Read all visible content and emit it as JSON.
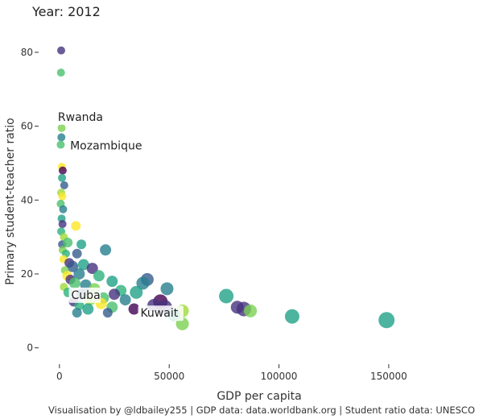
{
  "chart_data": {
    "type": "scatter",
    "title": "Year: 2012",
    "xlabel": "GDP per capita",
    "ylabel": "Primary student-teacher ratio",
    "caption": "Visualisation by @ldbailey255 | GDP data: data.worldbank.org | Student ratio data: UNESCO",
    "xlim": [
      -8000,
      190000
    ],
    "ylim": [
      -4,
      85
    ],
    "x_ticks": [
      0,
      50000,
      100000,
      150000
    ],
    "x_tick_labels": [
      "0",
      "50000",
      "100000",
      "150000"
    ],
    "y_ticks": [
      0,
      20,
      40,
      60,
      80
    ],
    "y_tick_labels": [
      "0",
      "20",
      "40",
      "60",
      "80"
    ],
    "grid": false,
    "annotations": [
      {
        "label": "Rwanda",
        "x": 1500,
        "y": 59.5
      },
      {
        "label": "Mozambique",
        "x": 1200,
        "y": 55
      },
      {
        "label": "Cuba",
        "x": 6500,
        "y": 15
      },
      {
        "label": "Kuwait",
        "x": 49000,
        "y": 11
      }
    ],
    "points": [
      {
        "x": 800,
        "y": 80.5,
        "size": 3,
        "color": "#46327e"
      },
      {
        "x": 700,
        "y": 74.5,
        "size": 3,
        "color": "#4ac16d"
      },
      {
        "x": 1000,
        "y": 59.5,
        "size": 3,
        "color": "#7ad151"
      },
      {
        "x": 900,
        "y": 57,
        "size": 3,
        "color": "#277f8e"
      },
      {
        "x": 600,
        "y": 55,
        "size": 3,
        "color": "#4ac16d"
      },
      {
        "x": 1100,
        "y": 49,
        "size": 3,
        "color": "#fde725"
      },
      {
        "x": 1500,
        "y": 48,
        "size": 3,
        "color": "#440154"
      },
      {
        "x": 1200,
        "y": 46,
        "size": 3,
        "color": "#1fa187"
      },
      {
        "x": 2200,
        "y": 44,
        "size": 3,
        "color": "#365c8d"
      },
      {
        "x": 800,
        "y": 42,
        "size": 3,
        "color": "#a0da39"
      },
      {
        "x": 1300,
        "y": 41,
        "size": 3,
        "color": "#fde725"
      },
      {
        "x": 600,
        "y": 39,
        "size": 3,
        "color": "#4ac16d"
      },
      {
        "x": 1700,
        "y": 37.5,
        "size": 3,
        "color": "#277f8e"
      },
      {
        "x": 1000,
        "y": 35,
        "size": 3,
        "color": "#1fa187"
      },
      {
        "x": 1400,
        "y": 33.5,
        "size": 3,
        "color": "#46327e"
      },
      {
        "x": 7500,
        "y": 33,
        "size": 4,
        "color": "#fde725"
      },
      {
        "x": 800,
        "y": 31.5,
        "size": 3,
        "color": "#2db27d"
      },
      {
        "x": 2000,
        "y": 30,
        "size": 3,
        "color": "#a0da39"
      },
      {
        "x": 1200,
        "y": 28,
        "size": 3,
        "color": "#365c8d"
      },
      {
        "x": 3800,
        "y": 28.5,
        "size": 4,
        "color": "#4ac16d"
      },
      {
        "x": 10000,
        "y": 28,
        "size": 4,
        "color": "#1fa187"
      },
      {
        "x": 1500,
        "y": 26.5,
        "size": 3,
        "color": "#7ad151"
      },
      {
        "x": 3000,
        "y": 25.5,
        "size": 3,
        "color": "#2db27d"
      },
      {
        "x": 8000,
        "y": 25.5,
        "size": 4,
        "color": "#365c8d"
      },
      {
        "x": 21000,
        "y": 26.5,
        "size": 5,
        "color": "#277f8e"
      },
      {
        "x": 1800,
        "y": 24,
        "size": 3,
        "color": "#fde725"
      },
      {
        "x": 4500,
        "y": 23,
        "size": 4,
        "color": "#46327e"
      },
      {
        "x": 6000,
        "y": 22,
        "size": 5,
        "color": "#365c8d"
      },
      {
        "x": 11000,
        "y": 22.5,
        "size": 5,
        "color": "#1fa187"
      },
      {
        "x": 2500,
        "y": 21,
        "size": 3,
        "color": "#7ad151"
      },
      {
        "x": 15000,
        "y": 21.5,
        "size": 5,
        "color": "#46327e"
      },
      {
        "x": 9000,
        "y": 20,
        "size": 5,
        "color": "#277f8e"
      },
      {
        "x": 3500,
        "y": 19.5,
        "size": 4,
        "color": "#fde725"
      },
      {
        "x": 18000,
        "y": 19.5,
        "size": 5,
        "color": "#2db27d"
      },
      {
        "x": 24000,
        "y": 18,
        "size": 5,
        "color": "#1fa187"
      },
      {
        "x": 5000,
        "y": 18.5,
        "size": 4,
        "color": "#46327e"
      },
      {
        "x": 7000,
        "y": 17.5,
        "size": 5,
        "color": "#4ac16d"
      },
      {
        "x": 12000,
        "y": 17,
        "size": 5,
        "color": "#277f8e"
      },
      {
        "x": 40000,
        "y": 18.5,
        "size": 6,
        "color": "#365c8d"
      },
      {
        "x": 38000,
        "y": 17.5,
        "size": 6,
        "color": "#277f8e"
      },
      {
        "x": 49000,
        "y": 16,
        "size": 6,
        "color": "#277f8e"
      },
      {
        "x": 2000,
        "y": 16.5,
        "size": 3,
        "color": "#a0da39"
      },
      {
        "x": 16000,
        "y": 16,
        "size": 5,
        "color": "#7ad151"
      },
      {
        "x": 28000,
        "y": 15.5,
        "size": 5,
        "color": "#2db27d"
      },
      {
        "x": 35000,
        "y": 15,
        "size": 6,
        "color": "#1fa187"
      },
      {
        "x": 4000,
        "y": 15,
        "size": 4,
        "color": "#2db27d"
      },
      {
        "x": 10000,
        "y": 14.5,
        "size": 5,
        "color": "#365c8d"
      },
      {
        "x": 25000,
        "y": 14.5,
        "size": 5,
        "color": "#46327e"
      },
      {
        "x": 76000,
        "y": 14,
        "size": 7,
        "color": "#1fa187"
      },
      {
        "x": 20000,
        "y": 13.5,
        "size": 5,
        "color": "#4ac16d"
      },
      {
        "x": 14000,
        "y": 13,
        "size": 5,
        "color": "#a0da39"
      },
      {
        "x": 30000,
        "y": 13,
        "size": 5,
        "color": "#277f8e"
      },
      {
        "x": 6500,
        "y": 12.5,
        "size": 4,
        "color": "#46327e"
      },
      {
        "x": 46000,
        "y": 12.5,
        "size": 7,
        "color": "#440154"
      },
      {
        "x": 19000,
        "y": 12,
        "size": 5,
        "color": "#fde725"
      },
      {
        "x": 9000,
        "y": 11.5,
        "size": 4,
        "color": "#2db27d"
      },
      {
        "x": 43000,
        "y": 11.5,
        "size": 6,
        "color": "#46327e"
      },
      {
        "x": 24000,
        "y": 11,
        "size": 5,
        "color": "#4ac16d"
      },
      {
        "x": 48000,
        "y": 11,
        "size": 7,
        "color": "#46327e"
      },
      {
        "x": 81000,
        "y": 11,
        "size": 6,
        "color": "#46327e"
      },
      {
        "x": 13000,
        "y": 10.5,
        "size": 5,
        "color": "#1fa187"
      },
      {
        "x": 34000,
        "y": 10.5,
        "size": 5,
        "color": "#440154"
      },
      {
        "x": 84000,
        "y": 10.5,
        "size": 7,
        "color": "#46327e"
      },
      {
        "x": 56000,
        "y": 10,
        "size": 6,
        "color": "#a0da39"
      },
      {
        "x": 87000,
        "y": 10,
        "size": 6,
        "color": "#7ad151"
      },
      {
        "x": 8000,
        "y": 9.5,
        "size": 4,
        "color": "#277f8e"
      },
      {
        "x": 22000,
        "y": 9.5,
        "size": 4,
        "color": "#365c8d"
      },
      {
        "x": 52000,
        "y": 9,
        "size": 6,
        "color": "#1fa187"
      },
      {
        "x": 106000,
        "y": 8.5,
        "size": 7,
        "color": "#1fa187"
      },
      {
        "x": 149000,
        "y": 7.5,
        "size": 8,
        "color": "#1fa187"
      },
      {
        "x": 56000,
        "y": 6.5,
        "size": 6,
        "color": "#7ad151"
      }
    ]
  }
}
